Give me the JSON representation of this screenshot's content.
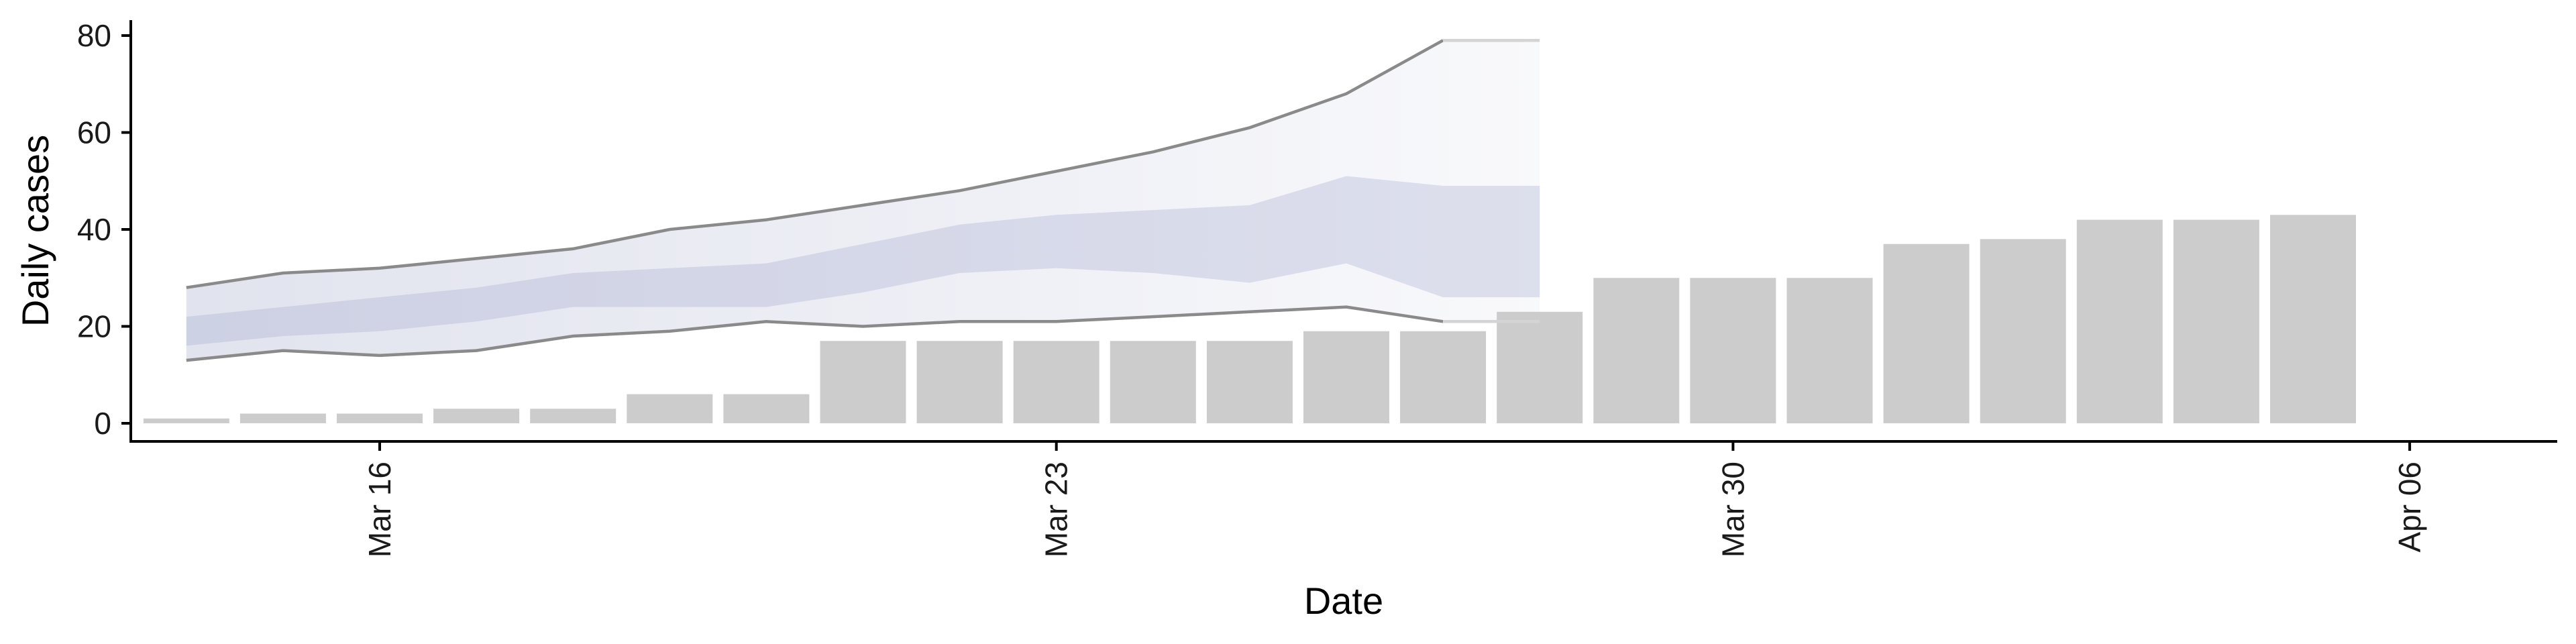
{
  "chart_data": {
    "type": "bar",
    "title": "",
    "xlabel": "Date",
    "ylabel": "Daily cases",
    "x_axis": {
      "type": "date",
      "range": [
        "2020-03-12",
        "2020-04-08"
      ],
      "ticks": [
        {
          "date": "2020-03-16",
          "label": "Mar 16"
        },
        {
          "date": "2020-03-23",
          "label": "Mar 23"
        },
        {
          "date": "2020-03-30",
          "label": "Mar 30"
        },
        {
          "date": "2020-04-06",
          "label": "Apr 06"
        }
      ],
      "label_orientation": "vertical"
    },
    "y_axis": {
      "range": [
        -3.5,
        83
      ],
      "ticks": [
        0,
        20,
        40,
        60,
        80
      ]
    },
    "grid": false,
    "legend": "none",
    "bars": {
      "name": "",
      "color": "#cccccc",
      "dates": [
        "2020-03-14",
        "2020-03-15",
        "2020-03-16",
        "2020-03-17",
        "2020-03-18",
        "2020-03-19",
        "2020-03-20",
        "2020-03-21",
        "2020-03-22",
        "2020-03-23",
        "2020-03-24",
        "2020-03-25",
        "2020-03-26",
        "2020-03-27",
        "2020-03-28",
        "2020-03-29",
        "2020-03-30",
        "2020-03-31",
        "2020-04-01",
        "2020-04-02",
        "2020-04-03",
        "2020-04-04",
        "2020-04-05",
        "2020-04-06",
        "2020-04-07"
      ],
      "values": [
        1,
        2,
        2,
        3,
        3,
        6,
        6,
        17,
        17,
        17,
        17,
        17,
        19,
        19,
        23,
        30,
        30,
        30,
        37,
        38,
        42,
        42,
        43,
        0,
        0
      ]
    },
    "forecast": {
      "dates": [
        "2020-03-14",
        "2020-03-15",
        "2020-03-16",
        "2020-03-17",
        "2020-03-18",
        "2020-03-19",
        "2020-03-20",
        "2020-03-21",
        "2020-03-22",
        "2020-03-23",
        "2020-03-24",
        "2020-03-25",
        "2020-03-26",
        "2020-03-27",
        "2020-03-28"
      ],
      "band_90_upper": [
        28,
        31,
        32,
        34,
        36,
        40,
        42,
        45,
        48,
        52,
        56,
        61,
        68,
        79,
        79
      ],
      "band_90_lower": [
        13,
        15,
        14,
        15,
        18,
        19,
        21,
        20,
        21,
        21,
        22,
        23,
        24,
        21,
        21
      ],
      "band_50_upper": [
        22,
        24,
        26,
        28,
        31,
        32,
        33,
        37,
        41,
        43,
        44,
        45,
        51,
        49,
        49
      ],
      "band_50_lower": [
        16,
        18,
        19,
        21,
        24,
        24,
        24,
        27,
        31,
        32,
        31,
        29,
        33,
        26,
        26
      ],
      "colors": {
        "band_90": "#c8cce0",
        "band_50": "#a9b0d2",
        "line": "#8a8a8a"
      }
    }
  }
}
